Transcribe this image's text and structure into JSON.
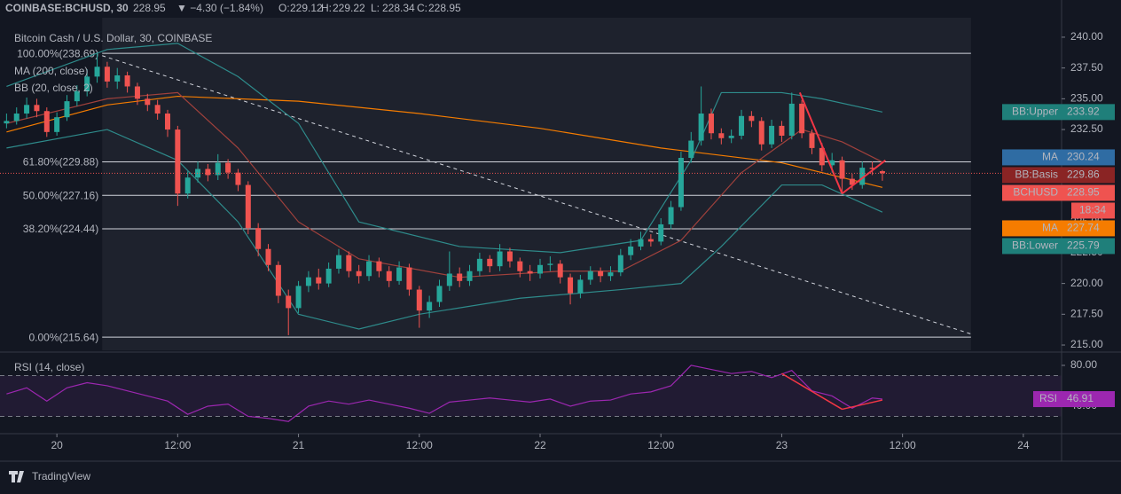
{
  "chart_data": {
    "type": "candlestick",
    "header": {
      "symbol": "COINBASE:BCHUSD, 30",
      "last": "228.95",
      "change": "▼ −4.30 (−1.84%)",
      "ohlc": [
        {
          "label": "O:",
          "value": "229.12"
        },
        {
          "label": "H:",
          "value": "229.22"
        },
        {
          "label": "L:",
          "value": "228.34"
        },
        {
          "label": "C:",
          "value": "228.95"
        }
      ]
    },
    "title": "Bitcoin Cash / U.S. Dollar, 30, COINBASE",
    "up_color": "#26a69a",
    "down_color": "#ef5350",
    "x": [
      -5,
      -4,
      -3,
      -2,
      -1,
      0,
      1,
      2,
      3,
      4,
      5,
      6,
      7,
      8,
      9,
      10,
      11,
      12,
      13,
      14,
      15,
      16,
      17,
      18,
      19,
      20,
      21,
      22,
      23,
      24,
      25,
      26,
      27,
      28,
      29,
      30,
      31,
      32,
      33,
      34,
      35,
      36,
      37,
      38,
      39,
      40,
      41,
      42,
      43,
      44,
      45,
      46,
      47,
      48,
      49,
      50,
      51,
      52,
      53,
      54,
      55,
      56,
      57,
      58,
      59,
      60,
      61,
      62,
      63,
      64,
      65,
      66,
      67,
      68,
      69,
      70,
      71,
      72,
      73,
      74,
      75,
      76,
      77,
      78,
      79,
      80,
      81,
      82
    ],
    "open": [
      233.0,
      233.2,
      233.8,
      234.5,
      234.0,
      232.3,
      233.5,
      234.8,
      235.6,
      236.8,
      237.6,
      236.4,
      236.9,
      236.0,
      235.0,
      234.5,
      233.8,
      232.5,
      227.3,
      228.6,
      229.3,
      228.8,
      229.8,
      229.0,
      228.0,
      224.5,
      222.8,
      221.5,
      219.0,
      218.0,
      219.8,
      220.5,
      220.0,
      221.2,
      222.3,
      221.0,
      220.6,
      221.8,
      221.0,
      220.2,
      221.3,
      219.5,
      217.8,
      218.5,
      219.8,
      220.8,
      220.2,
      221.0,
      222.0,
      221.4,
      222.6,
      221.8,
      221.0,
      220.8,
      221.5,
      221.6,
      220.5,
      219.2,
      220.3,
      221.0,
      220.6,
      220.9,
      222.3,
      223.0,
      223.6,
      223.4,
      224.8,
      226.2,
      230.2,
      231.6,
      233.8,
      232.2,
      231.8,
      232.0,
      233.6,
      233.2,
      231.3,
      232.8,
      232.0,
      234.6,
      232.2,
      231.0,
      229.6,
      230.0,
      228.5,
      228.0,
      229.4,
      229.12
    ],
    "high": [
      233.8,
      234.3,
      235.1,
      235.0,
      234.3,
      233.9,
      235.3,
      236.1,
      237.4,
      238.69,
      238.0,
      237.5,
      237.2,
      236.3,
      235.4,
      234.9,
      234.1,
      232.8,
      229.1,
      229.9,
      229.7,
      230.5,
      230.1,
      229.3,
      228.3,
      224.9,
      223.2,
      221.8,
      219.5,
      220.2,
      221.0,
      221.2,
      221.7,
      222.8,
      222.6,
      221.5,
      222.3,
      222.1,
      221.4,
      221.8,
      221.6,
      219.8,
      219.0,
      220.3,
      222.6,
      221.3,
      221.5,
      222.5,
      222.3,
      223.2,
      222.9,
      222.1,
      221.5,
      222.0,
      222.2,
      221.9,
      220.8,
      220.7,
      221.4,
      221.3,
      221.4,
      222.8,
      223.6,
      224.2,
      224.0,
      225.3,
      226.7,
      230.7,
      232.3,
      236.0,
      234.2,
      232.6,
      232.5,
      234.1,
      234.0,
      233.5,
      233.3,
      233.2,
      235.5,
      234.9,
      232.5,
      231.4,
      230.6,
      230.3,
      228.9,
      229.9,
      229.9,
      229.22
    ],
    "low": [
      232.6,
      232.9,
      233.4,
      233.5,
      231.9,
      232.0,
      233.2,
      234.4,
      235.2,
      236.3,
      235.9,
      235.8,
      235.5,
      234.5,
      234.0,
      233.3,
      231.9,
      226.3,
      226.9,
      228.2,
      228.3,
      228.4,
      228.5,
      227.5,
      224.0,
      222.2,
      221.0,
      218.4,
      215.8,
      217.6,
      219.3,
      219.5,
      219.7,
      220.8,
      220.5,
      220.0,
      220.2,
      220.5,
      219.7,
      219.9,
      219.0,
      216.4,
      217.2,
      218.1,
      219.4,
      219.7,
      219.8,
      220.6,
      220.9,
      221.0,
      221.3,
      220.5,
      220.2,
      220.4,
      221.0,
      220.0,
      218.3,
      218.8,
      219.9,
      220.1,
      220.2,
      220.6,
      221.9,
      222.7,
      223.0,
      223.1,
      224.4,
      225.9,
      229.8,
      231.2,
      231.7,
      231.3,
      231.4,
      231.7,
      232.7,
      230.8,
      231.0,
      231.5,
      231.7,
      231.8,
      230.5,
      229.1,
      229.0,
      227.3,
      227.6,
      227.7,
      228.8,
      228.34
    ],
    "close": [
      233.2,
      233.8,
      234.5,
      234.0,
      232.3,
      233.5,
      234.8,
      235.6,
      236.8,
      237.6,
      236.4,
      236.9,
      236.0,
      235.0,
      234.5,
      233.8,
      232.5,
      227.3,
      228.6,
      229.3,
      228.8,
      229.8,
      229.0,
      228.0,
      224.5,
      222.8,
      221.5,
      219.0,
      218.0,
      219.8,
      220.5,
      220.0,
      221.2,
      222.3,
      221.0,
      220.6,
      221.8,
      221.0,
      220.2,
      221.3,
      219.5,
      217.8,
      218.5,
      219.8,
      220.8,
      220.2,
      221.0,
      222.0,
      221.4,
      222.6,
      221.8,
      221.0,
      220.8,
      221.5,
      221.6,
      220.5,
      219.2,
      220.3,
      221.0,
      220.6,
      220.9,
      222.3,
      223.0,
      223.6,
      223.4,
      224.8,
      226.2,
      230.2,
      231.6,
      233.8,
      232.2,
      231.8,
      232.0,
      233.6,
      233.2,
      231.3,
      232.8,
      232.0,
      234.6,
      232.2,
      231.0,
      229.6,
      230.0,
      228.5,
      228.0,
      229.4,
      229.3,
      228.95
    ],
    "overlays": [
      {
        "name": "MA (200, close)",
        "lines": [
          {
            "color": "#f57c00",
            "x": [
              -5,
              5,
              12,
              24,
              36,
              48,
              60,
              72,
              82
            ],
            "values": [
              232.3,
              234.5,
              235.2,
              234.8,
              233.8,
              232.6,
              231.0,
              229.8,
              227.8
            ]
          }
        ]
      },
      {
        "name": "BB (20, close, 2)",
        "lines": [
          {
            "color": "#2e8b8b",
            "x": [
              -5,
              5,
              12,
              18,
              24,
              30,
              40,
              50,
              58,
              63,
              66,
              72,
              76,
              82
            ],
            "values": [
              236,
              239,
              239.5,
              236.8,
              233,
              225,
              223,
              222.5,
              223.5,
              230,
              235.5,
              235.5,
              235,
              233.92
            ]
          },
          {
            "color": "#a0413c",
            "x": [
              -5,
              5,
              12,
              18,
              24,
              30,
              40,
              50,
              56,
              62,
              68,
              74,
              78,
              82
            ],
            "values": [
              233,
              235,
              235.5,
              231,
              225,
              222,
              220.5,
              221,
              221,
              223.5,
              229,
              232.5,
              231.5,
              229.86
            ]
          },
          {
            "color": "#2e8b8b",
            "x": [
              -5,
              5,
              12,
              18,
              24,
              30,
              36,
              46,
              56,
              62,
              66,
              72,
              76,
              82
            ],
            "values": [
              231,
              232.5,
              230,
              225,
              217.5,
              216.3,
              217.5,
              218.8,
              219.5,
              220,
              223,
              228,
              228,
              225.79
            ]
          }
        ]
      }
    ],
    "fib": [
      {
        "label": "100.00%(238.69)",
        "value": 238.69
      },
      {
        "label": "61.80%(229.88)",
        "value": 229.88
      },
      {
        "label": "50.00%(227.16)",
        "value": 227.16
      },
      {
        "label": "38.20%(224.44)",
        "value": 224.44
      },
      {
        "label": "0.00%(215.64)",
        "value": 215.64
      }
    ],
    "fib_x": [
      4.5,
      90.8
    ],
    "dashed_trend": {
      "x": [
        4.5,
        90.8
      ],
      "values": [
        238.5,
        215.9
      ]
    },
    "trendlines": [
      {
        "x": [
          73.8,
          78
        ],
        "values": [
          235.5,
          227.3
        ]
      },
      {
        "x": [
          78,
          82.3
        ],
        "values": [
          227.3,
          230
        ]
      }
    ],
    "tags": [
      {
        "name": "BB:Upper",
        "value": 233.92,
        "color": "#1f7f7a"
      },
      {
        "name": "MA",
        "value": 230.24,
        "color": "#2f6ca3"
      },
      {
        "name": "BB:Basis",
        "value": 229.86,
        "color": "#8a2424"
      },
      {
        "name": "BCHUSD",
        "value": 228.95,
        "color": "#ef5350",
        "countdown": "18:34"
      },
      {
        "name": "MA",
        "value": 227.74,
        "color": "#f57c00"
      },
      {
        "name": "BB:Lower",
        "value": 225.79,
        "color": "#1f7f7a"
      }
    ],
    "xlim": [
      -5.65,
      99.8
    ],
    "xticks": [
      {
        "value": 0,
        "label": "20"
      },
      {
        "value": 12,
        "label": "12:00"
      },
      {
        "value": 24,
        "label": "21"
      },
      {
        "value": 36,
        "label": "12:00"
      },
      {
        "value": 48,
        "label": "22"
      },
      {
        "value": 60,
        "label": "12:00"
      },
      {
        "value": 72,
        "label": "23"
      },
      {
        "value": 84,
        "label": "12:00"
      },
      {
        "value": 96,
        "label": "24"
      }
    ],
    "ylim": [
      214.57,
      241.58
    ],
    "yticks": [
      {
        "value": 240,
        "label": "240.00"
      },
      {
        "value": 237.5,
        "label": "237.50"
      },
      {
        "value": 235,
        "label": "235.00"
      },
      {
        "value": 232.5,
        "label": "232.50"
      },
      {
        "value": 230,
        "label": "230.00"
      },
      {
        "value": 227.5,
        "label": "227.50"
      },
      {
        "value": 225,
        "label": "225.00"
      },
      {
        "value": 222.5,
        "label": "222.50"
      },
      {
        "value": 220,
        "label": "220.00"
      },
      {
        "value": 217.5,
        "label": "217.50"
      },
      {
        "value": 215,
        "label": "215.00"
      }
    ],
    "rsi": {
      "name": "RSI (14, close)",
      "color": "#9c27b0",
      "tag": "RSI",
      "last": 46.91,
      "x": [
        -5,
        -3,
        -1,
        1,
        3,
        5,
        7,
        9,
        11,
        13,
        15,
        17,
        19,
        21,
        23,
        25,
        27,
        29,
        31,
        33,
        35,
        37,
        39,
        41,
        43,
        45,
        47,
        49,
        51,
        53,
        55,
        57,
        59,
        61,
        63,
        65,
        67,
        69,
        71,
        73,
        75,
        77,
        79,
        81,
        82
      ],
      "values": [
        52,
        58,
        45,
        58,
        63,
        60,
        55,
        50,
        45,
        32,
        40,
        42,
        30,
        28,
        25,
        40,
        45,
        42,
        46,
        42,
        38,
        33,
        44,
        46,
        48,
        46,
        44,
        47,
        40,
        45,
        46,
        52,
        54,
        60,
        80,
        76,
        72,
        74,
        68,
        75,
        55,
        50,
        38,
        48,
        46.91
      ],
      "ylim": [
        16.5,
        90.4
      ],
      "yticks": [
        {
          "value": 80,
          "label": "80.00"
        },
        {
          "value": 40,
          "label": "40.00"
        }
      ],
      "bands": [
        70,
        30
      ],
      "trendlines": [
        {
          "x": [
            72,
            78
          ],
          "values": [
            72,
            37
          ]
        },
        {
          "x": [
            78,
            82
          ],
          "values": [
            37,
            46
          ]
        }
      ]
    },
    "brand": "TradingView"
  }
}
